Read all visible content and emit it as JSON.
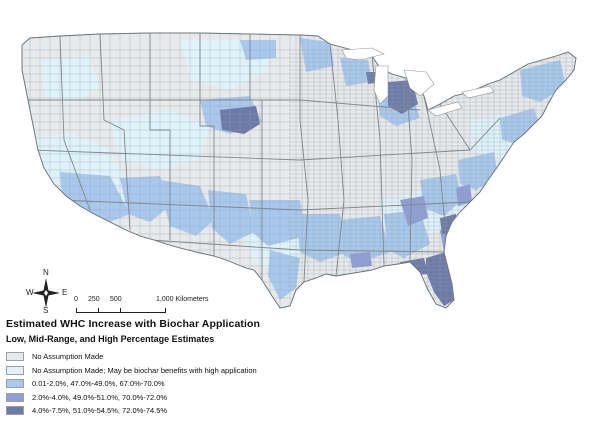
{
  "legend": {
    "title": "Estimated WHC Increase with Biochar Application",
    "subtitle": "Low, Mid-Range, and High Percentage Estimates",
    "items": [
      {
        "label": "No Assumption Made",
        "color": "#e8e9ea"
      },
      {
        "label": "No Assumption Made; May be biochar benefits with high application",
        "color": "#dff2f9"
      },
      {
        "label": "0.01-2.0%, 47.0%-49.0%, 67.0%-70.0%",
        "color": "#a8c8ee"
      },
      {
        "label": "2.0%-4.0%, 49.0%-51.0%, 70.0%-72.0%",
        "color": "#8e9ed6"
      },
      {
        "label": "4.0%-7.5%, 51.0%-54.5%, 72.0%-74.5%",
        "color": "#6d7aa8"
      }
    ]
  },
  "scale_bar": {
    "ticks": [
      "0",
      "250",
      "500",
      "1,000 Kilometers"
    ]
  },
  "compass": {
    "n": "N",
    "s": "S",
    "e": "E",
    "w": "W"
  },
  "map": {
    "border_color": "#9aa0a6"
  }
}
